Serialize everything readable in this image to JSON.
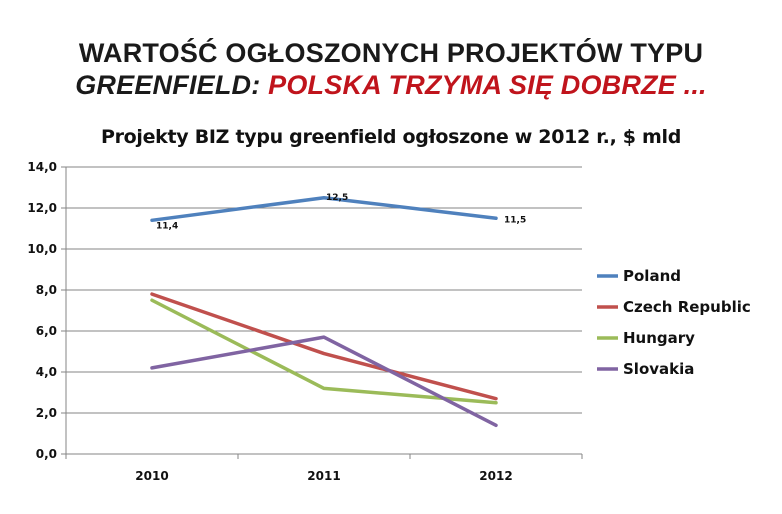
{
  "slide": {
    "title_line1": "WARTOŚĆ OGŁOSZONYCH PROJEKTÓW TYPU",
    "title_line2_black": "GREENFIELD: ",
    "title_line2_red": "POLSKA  TRZYMA SIĘ DOBRZE ..."
  },
  "chart_data": {
    "type": "line",
    "title": "Projekty BIZ typu greenfield ogłoszone w 2012 r., $ mld",
    "categories": [
      "2010",
      "2011",
      "2012"
    ],
    "ylim": [
      0,
      14
    ],
    "yticks": [
      "0,0",
      "2,0",
      "4,0",
      "6,0",
      "8,0",
      "10,0",
      "12,0",
      "14,0"
    ],
    "grid": true,
    "legend_position": "right",
    "series": [
      {
        "name": "Poland",
        "color": "#4f81bd",
        "values": [
          11.4,
          12.5,
          11.5
        ],
        "labels": [
          "11,4",
          "12,5",
          "11,5"
        ]
      },
      {
        "name": "Czech Republic",
        "color": "#c0504d",
        "values": [
          7.8,
          4.9,
          2.7
        ]
      },
      {
        "name": "Hungary",
        "color": "#9bbb59",
        "values": [
          7.5,
          3.2,
          2.5
        ]
      },
      {
        "name": "Slovakia",
        "color": "#8064a2",
        "values": [
          4.2,
          5.7,
          1.4
        ]
      }
    ]
  }
}
